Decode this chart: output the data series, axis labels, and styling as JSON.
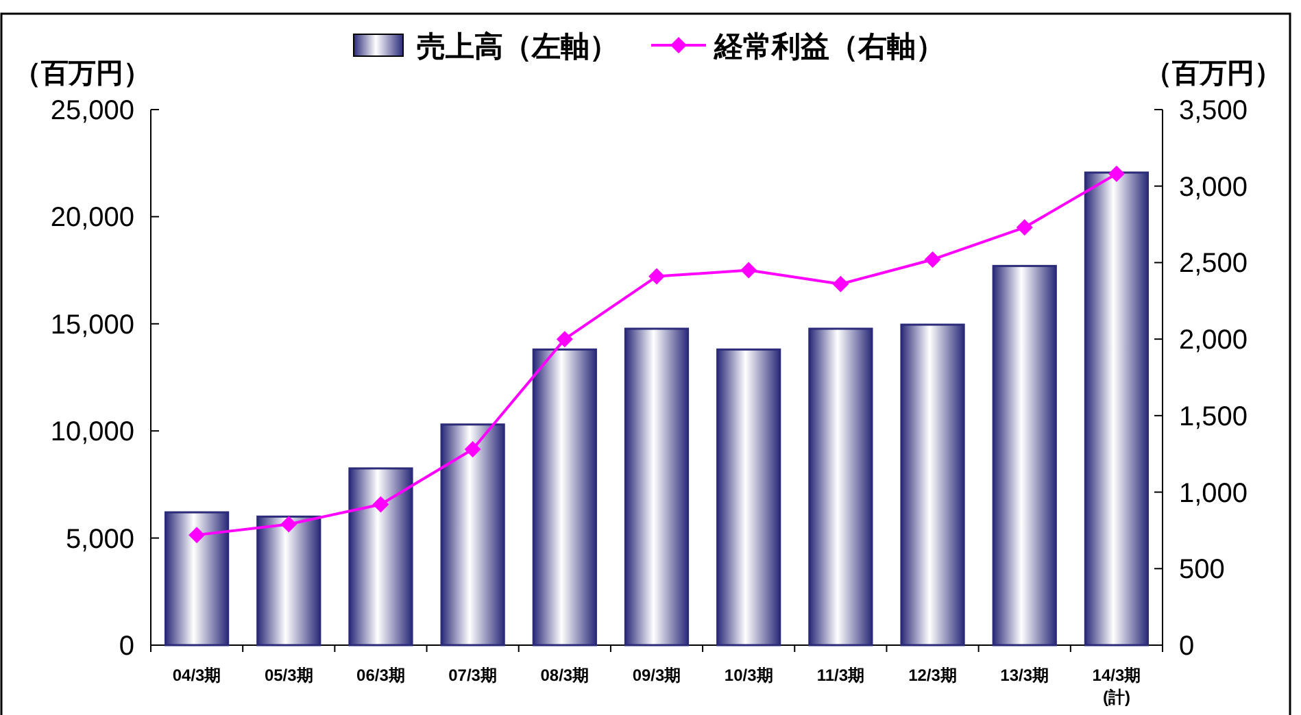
{
  "chart_data": {
    "type": "bar",
    "categories": [
      "04/3期",
      "05/3期",
      "06/3期",
      "07/3期",
      "08/3期",
      "09/3期",
      "10/3期",
      "11/3期",
      "12/3期",
      "13/3期",
      "14/3期\n(計)"
    ],
    "series": [
      {
        "name": "売上高（左軸）",
        "color": "#2b2b7a",
        "values": [
          6200,
          6000,
          8250,
          10300,
          13800,
          14770,
          13800,
          14770,
          14960,
          17700,
          22060
        ]
      },
      {
        "name": "経常利益（右軸）",
        "type": "line",
        "axis": "y2",
        "color": "#ff00ff",
        "marker": "diamond",
        "values": [
          720,
          790,
          920,
          1280,
          2000,
          2410,
          2450,
          2360,
          2520,
          2730,
          3080
        ]
      }
    ],
    "ylabel": "（百万円）",
    "y2label": "（百万円）",
    "ylim": [
      0,
      25000
    ],
    "yticks": [
      {
        "value": 0,
        "label": "0"
      },
      {
        "value": 5000,
        "label": "5,000"
      },
      {
        "value": 10000,
        "label": "10,000"
      },
      {
        "value": 15000,
        "label": "15,000"
      },
      {
        "value": 20000,
        "label": "20,000"
      },
      {
        "value": 25000,
        "label": "25,000"
      }
    ],
    "y2lim": [
      0,
      3500
    ],
    "y2ticks": [
      {
        "value": 0,
        "label": "0"
      },
      {
        "value": 500,
        "label": "500"
      },
      {
        "value": 1000,
        "label": "1,000"
      },
      {
        "value": 1500,
        "label": "1,500"
      },
      {
        "value": 2000,
        "label": "2,000"
      },
      {
        "value": 2500,
        "label": "2,500"
      },
      {
        "value": 3000,
        "label": "3,000"
      },
      {
        "value": 3500,
        "label": "3,500"
      }
    ],
    "legend": "top"
  }
}
